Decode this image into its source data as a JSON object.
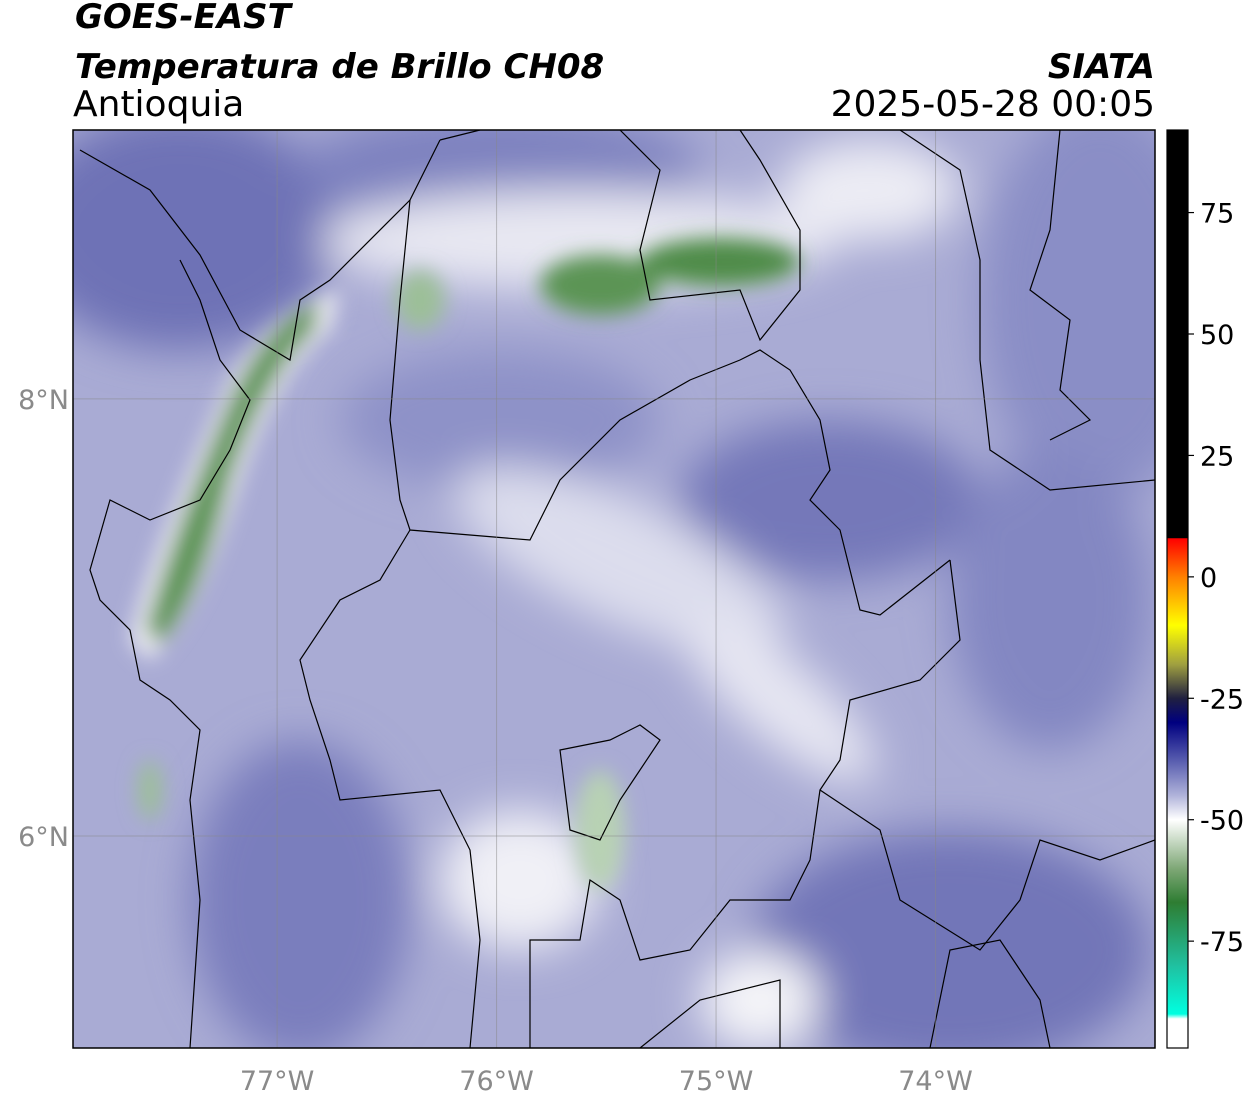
{
  "header": {
    "title": "GOES-EAST",
    "subtitle": "Temperatura de Brillo CH08",
    "region": "Antioquia",
    "source": "SIATA",
    "datetime": "2025-05-28 00:05"
  },
  "map": {
    "xlim": [
      -77.93,
      -73.0
    ],
    "ylim": [
      5.03,
      9.23
    ],
    "xticks": [
      {
        "value": -77,
        "label": "77°W"
      },
      {
        "value": -76,
        "label": "76°W"
      },
      {
        "value": -75,
        "label": "75°W"
      },
      {
        "value": -74,
        "label": "74°W"
      }
    ],
    "yticks": [
      {
        "value": 6,
        "label": "6°N"
      },
      {
        "value": 8,
        "label": "8°N"
      }
    ],
    "grid": true
  },
  "colorbar": {
    "lim": [
      -97,
      92
    ],
    "ticks": [
      75,
      50,
      25,
      0,
      -25,
      -50,
      -75
    ],
    "stops": [
      {
        "value": 92,
        "color": "#000000"
      },
      {
        "value": 8,
        "color": "#000000"
      },
      {
        "value": 7.9,
        "color": "#ff0000"
      },
      {
        "value": 0,
        "color": "#ff8000"
      },
      {
        "value": -10,
        "color": "#ffff00"
      },
      {
        "value": -18,
        "color": "#a0a040"
      },
      {
        "value": -25,
        "color": "#202040"
      },
      {
        "value": -30,
        "color": "#000080"
      },
      {
        "value": -38,
        "color": "#5a5fb0"
      },
      {
        "value": -45,
        "color": "#b0b3da"
      },
      {
        "value": -50,
        "color": "#ffffff"
      },
      {
        "value": -60,
        "color": "#7fa877"
      },
      {
        "value": -67,
        "color": "#2e7d32"
      },
      {
        "value": -80,
        "color": "#20c0a0"
      },
      {
        "value": -90,
        "color": "#00ffe0"
      },
      {
        "value": -91,
        "color": "#ffffff"
      },
      {
        "value": -97,
        "color": "#ffffff"
      }
    ]
  }
}
